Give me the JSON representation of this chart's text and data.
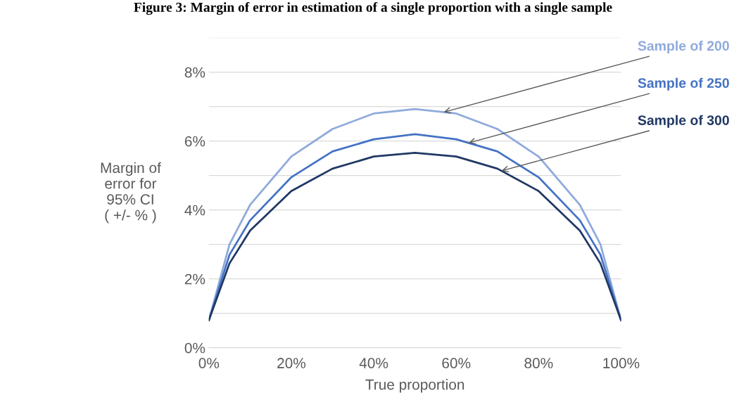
{
  "chart_data": {
    "type": "line",
    "title": "Figure 3: Margin of error in estimation of a single proportion with a single sample",
    "xlabel": "True proportion",
    "ylabel": "Margin of\nerror for\n95% CI\n( +/- % )",
    "x": [
      0,
      5,
      10,
      20,
      30,
      40,
      50,
      60,
      70,
      80,
      90,
      95,
      100
    ],
    "series": [
      {
        "name": "Sample of 200",
        "color": "#8faadc",
        "values": [
          0.8,
          3.0,
          4.15,
          5.55,
          6.35,
          6.8,
          6.93,
          6.8,
          6.35,
          5.55,
          4.15,
          3.0,
          0.8
        ]
      },
      {
        "name": "Sample of 250",
        "color": "#4472c4",
        "values": [
          0.8,
          2.7,
          3.7,
          4.95,
          5.7,
          6.05,
          6.2,
          6.05,
          5.7,
          4.95,
          3.7,
          2.7,
          0.8
        ]
      },
      {
        "name": "Sample of 300",
        "color": "#203864",
        "values": [
          0.8,
          2.45,
          3.4,
          4.55,
          5.2,
          5.55,
          5.66,
          5.55,
          5.2,
          4.55,
          3.4,
          2.45,
          0.8
        ]
      }
    ],
    "xlim": [
      0,
      100
    ],
    "xticks": [
      {
        "value": 0,
        "label": "0%"
      },
      {
        "value": 20,
        "label": "20%"
      },
      {
        "value": 40,
        "label": "40%"
      },
      {
        "value": 60,
        "label": "60%"
      },
      {
        "value": 80,
        "label": "80%"
      },
      {
        "value": 100,
        "label": "100%"
      }
    ],
    "ylim": [
      0,
      9
    ],
    "yticks": [
      {
        "value": 0,
        "label": "0%"
      },
      {
        "value": 1,
        "label": null
      },
      {
        "value": 2,
        "label": "2%"
      },
      {
        "value": 3,
        "label": null
      },
      {
        "value": 4,
        "label": "4%"
      },
      {
        "value": 5,
        "label": null
      },
      {
        "value": 6,
        "label": "6%"
      },
      {
        "value": 7,
        "label": null
      },
      {
        "value": 8,
        "label": "8%"
      },
      {
        "value": 9,
        "label": null
      }
    ],
    "grid": "y",
    "legend": false,
    "marker": "none",
    "line_style": "solid"
  }
}
